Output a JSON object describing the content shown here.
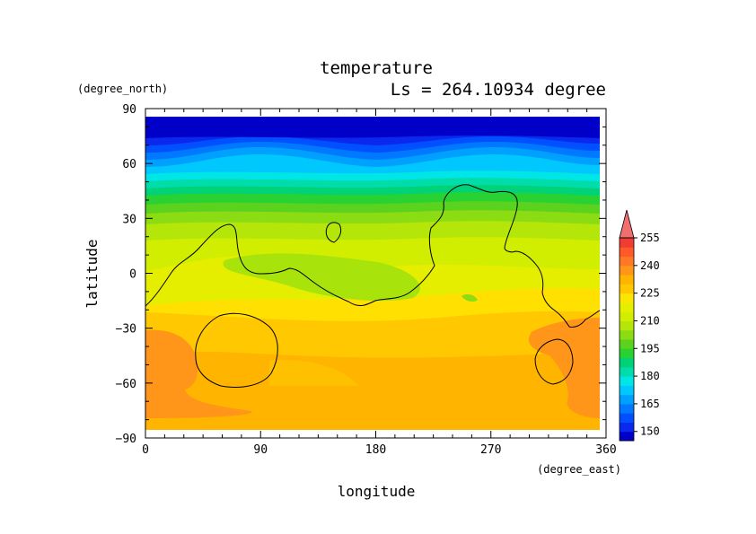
{
  "chart_data": {
    "type": "heatmap",
    "title": "temperature",
    "subtitle": "Ls = 264.10934 degree",
    "xlabel": "longitude",
    "ylabel": "latitude",
    "x_unit": "(degree_east)",
    "y_unit": "(degree_north)",
    "xlim": [
      0,
      360
    ],
    "ylim": [
      -90,
      90
    ],
    "x_ticks": [
      0,
      90,
      180,
      270,
      360
    ],
    "x_tick_labels": [
      "0",
      "90",
      "180",
      "270",
      "360"
    ],
    "y_ticks": [
      90,
      60,
      30,
      0,
      -30,
      -60,
      -90
    ],
    "y_tick_labels": [
      "90",
      "60",
      "30",
      "0",
      "−30",
      "−60",
      "−90"
    ],
    "data_lat_range": [
      -85,
      85
    ],
    "colorbar": {
      "levels": [
        145,
        150,
        155,
        160,
        165,
        170,
        175,
        180,
        185,
        190,
        195,
        200,
        205,
        210,
        215,
        220,
        225,
        230,
        235,
        240,
        245,
        250,
        255,
        260
      ],
      "colors": [
        "#0000c8",
        "#0a28ee",
        "#0050ff",
        "#0078ff",
        "#00a0ff",
        "#00c8ff",
        "#00e6e6",
        "#00dcaa",
        "#00d278",
        "#28d232",
        "#5ad21e",
        "#8cdc14",
        "#b4e60a",
        "#d2ee00",
        "#e6ee00",
        "#fae600",
        "#ffc800",
        "#ffb400",
        "#ff9619",
        "#ff7823",
        "#ff5a28",
        "#f03c32",
        "#f07070"
      ],
      "tick_values": [
        150,
        165,
        180,
        195,
        210,
        225,
        240,
        255
      ],
      "tick_labels": [
        "150",
        "165",
        "180",
        "195",
        "210",
        "225",
        "240",
        "255"
      ],
      "extend": "max"
    },
    "grid": false
  }
}
